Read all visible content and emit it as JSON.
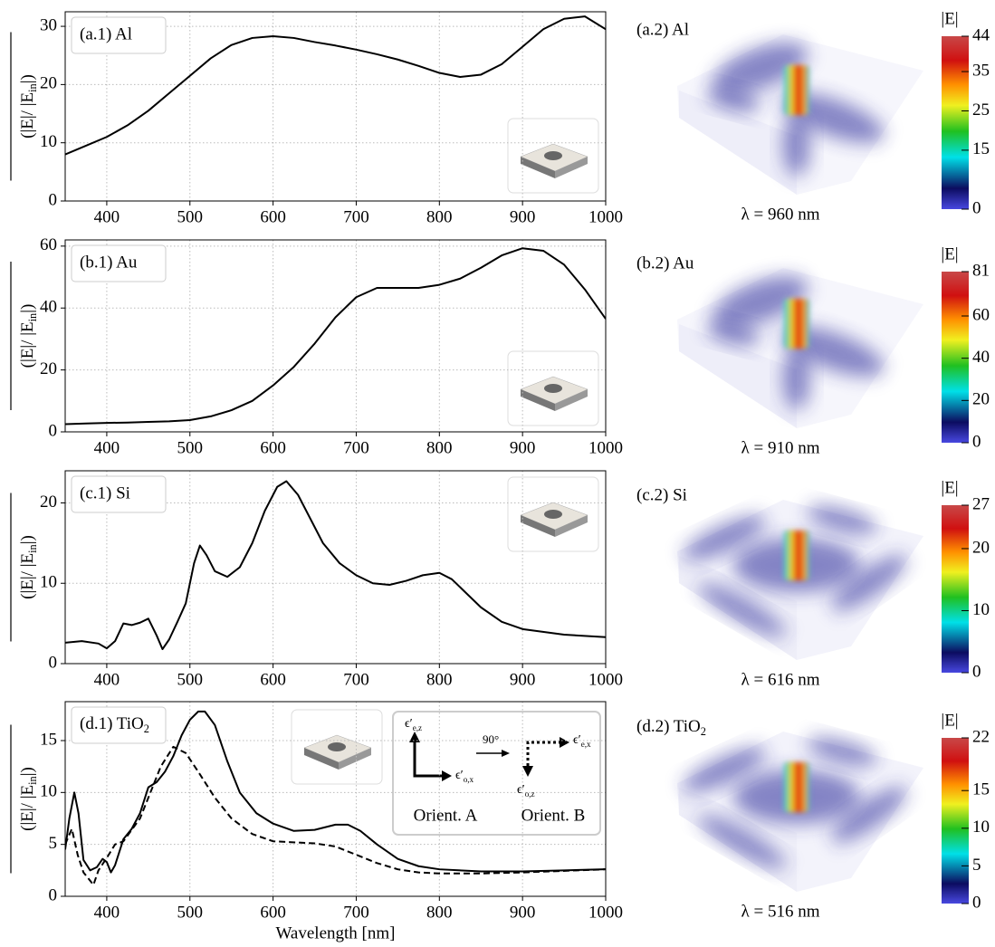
{
  "chart_data": [
    {
      "type": "line",
      "label": "(a.1) Al",
      "ylabel": [
        "(|E|/ |E",
        "in",
        "|)"
      ],
      "x": [
        350,
        375,
        400,
        425,
        450,
        475,
        500,
        525,
        550,
        575,
        600,
        625,
        650,
        675,
        700,
        725,
        750,
        775,
        800,
        825,
        850,
        875,
        900,
        925,
        950,
        975,
        1000
      ],
      "values": [
        8,
        9.5,
        11,
        13,
        15.5,
        18.5,
        21.5,
        24.5,
        26.8,
        28,
        28.3,
        28,
        27.3,
        26.7,
        26,
        25.2,
        24.3,
        23.2,
        22,
        21.3,
        21.7,
        23.5,
        26.5,
        29.5,
        31.3,
        31.7,
        29.5
      ],
      "color": "#000000",
      "xlim": [
        350,
        1000
      ],
      "xticks": [
        400,
        500,
        600,
        700,
        800,
        900,
        1000
      ],
      "ylim": [
        0,
        32.5
      ],
      "yticks": [
        0,
        10,
        20,
        30
      ],
      "grid": true
    },
    {
      "type": "line",
      "label": "(b.1) Au",
      "ylabel": [
        "(|E|/ |E",
        "in",
        "|)"
      ],
      "x": [
        350,
        375,
        400,
        425,
        450,
        475,
        500,
        525,
        550,
        575,
        600,
        625,
        650,
        675,
        700,
        725,
        750,
        775,
        800,
        825,
        850,
        875,
        900,
        925,
        950,
        975,
        1000
      ],
      "values": [
        2.5,
        2.7,
        2.9,
        3.0,
        3.2,
        3.4,
        3.8,
        5,
        7,
        10,
        15,
        21,
        28.5,
        37,
        43.5,
        46.5,
        46.5,
        46.5,
        47.5,
        49.5,
        53,
        57,
        59.3,
        58.5,
        54,
        46,
        36.5
      ],
      "color": "#000000",
      "xlim": [
        350,
        1000
      ],
      "xticks": [
        400,
        500,
        600,
        700,
        800,
        900,
        1000
      ],
      "ylim": [
        0,
        62
      ],
      "yticks": [
        0,
        20,
        40,
        60
      ],
      "grid": true
    },
    {
      "type": "line",
      "label": "(c.1) Si",
      "ylabel": [
        "(|E|/ |E",
        "in",
        "|)"
      ],
      "x": [
        350,
        370,
        390,
        400,
        410,
        420,
        430,
        440,
        450,
        460,
        467,
        475,
        485,
        495,
        505,
        512,
        520,
        530,
        545,
        560,
        575,
        590,
        605,
        616,
        630,
        645,
        660,
        680,
        700,
        720,
        740,
        760,
        780,
        800,
        815,
        830,
        850,
        875,
        900,
        950,
        1000
      ],
      "values": [
        2.6,
        2.8,
        2.5,
        1.9,
        2.8,
        5,
        4.8,
        5.1,
        5.6,
        3.5,
        1.8,
        3.0,
        5.2,
        7.5,
        12.5,
        14.7,
        13.5,
        11.5,
        10.8,
        12,
        15,
        19,
        22,
        22.7,
        21,
        18,
        15,
        12.5,
        11,
        10,
        9.8,
        10.3,
        11,
        11.3,
        10.5,
        9,
        7,
        5.2,
        4.3,
        3.6,
        3.3
      ],
      "color": "#000000",
      "xlim": [
        350,
        1000
      ],
      "xticks": [
        400,
        500,
        600,
        700,
        800,
        900,
        1000
      ],
      "ylim": [
        0,
        24
      ],
      "yticks": [
        0,
        10,
        20
      ],
      "grid": true
    },
    {
      "type": "line",
      "label": [
        "(d.1) TiO",
        "2"
      ],
      "ylabel": [
        "(|E|/ |E",
        "in",
        "|)"
      ],
      "xlabel": "Wavelength [nm]",
      "series": [
        {
          "name": "Orient. A",
          "color": "#000000",
          "dash": false,
          "x": [
            350,
            355,
            361,
            366,
            372,
            380,
            388,
            395,
            400,
            405,
            410,
            420,
            430,
            440,
            450,
            460,
            470,
            480,
            490,
            500,
            510,
            518,
            530,
            545,
            560,
            580,
            600,
            625,
            650,
            675,
            690,
            705,
            725,
            750,
            775,
            800,
            850,
            900,
            950,
            1000
          ],
          "values": [
            4.5,
            7.5,
            10,
            8,
            3.5,
            2.5,
            2.8,
            3.6,
            3.3,
            2.3,
            3.0,
            5.5,
            6.5,
            8,
            10.5,
            11,
            12,
            13.5,
            15.5,
            17,
            17.8,
            17.8,
            16.5,
            13,
            10,
            8,
            7,
            6.3,
            6.4,
            6.9,
            6.9,
            6.3,
            5,
            3.6,
            2.9,
            2.6,
            2.4,
            2.4,
            2.5,
            2.6
          ]
        },
        {
          "name": "Orient. B",
          "color": "#000000",
          "dash": true,
          "x": [
            350,
            358,
            365,
            372,
            380,
            384,
            390,
            400,
            410,
            420,
            440,
            455,
            465,
            480,
            495,
            510,
            530,
            550,
            575,
            600,
            650,
            675,
            700,
            725,
            750,
            775,
            800,
            850,
            900,
            1000
          ],
          "values": [
            5,
            6.5,
            4,
            2.3,
            1.5,
            1.1,
            2.5,
            3.7,
            5,
            5.3,
            7.5,
            10.5,
            12.5,
            14.4,
            13.8,
            12,
            9.5,
            7.5,
            6,
            5.3,
            5.1,
            4.8,
            4,
            3.2,
            2.6,
            2.3,
            2.2,
            2.2,
            2.3,
            2.6
          ]
        }
      ],
      "inset_labels": {
        "ez": [
          "ϵ′",
          "e,z"
        ],
        "ox": [
          "ϵ′",
          "o,x"
        ],
        "angle": "90°",
        "ex": [
          "ϵ′",
          "e,x"
        ],
        "oz": [
          "ϵ′",
          "o,z"
        ]
      },
      "xlim": [
        350,
        1000
      ],
      "xticks": [
        400,
        500,
        600,
        700,
        800,
        900,
        1000
      ],
      "ylim": [
        0,
        18.75
      ],
      "yticks": [
        0,
        5,
        10,
        15
      ],
      "grid": true
    }
  ],
  "fields": [
    {
      "label": "(a.2) Al",
      "lambda": "λ = 960 nm",
      "colorbar": {
        "title": "|E|",
        "lim": [
          0,
          44
        ],
        "ticks": [
          0,
          15,
          25,
          35,
          44
        ]
      }
    },
    {
      "label": "(b.2) Au",
      "lambda": "λ = 910 nm",
      "colorbar": {
        "title": "|E|",
        "lim": [
          0,
          81
        ],
        "ticks": [
          0,
          20,
          40,
          60,
          81
        ]
      }
    },
    {
      "label": "(c.2) Si",
      "lambda": "λ = 616 nm",
      "colorbar": {
        "title": "|E|",
        "lim": [
          0,
          27
        ],
        "ticks": [
          0,
          10,
          20,
          27
        ]
      }
    },
    {
      "label": [
        "(d.2) TiO",
        "2"
      ],
      "lambda": "λ = 516 nm",
      "colorbar": {
        "title": "|E|",
        "lim": [
          0,
          22
        ],
        "ticks": [
          0,
          5,
          10,
          15,
          22
        ]
      }
    }
  ]
}
